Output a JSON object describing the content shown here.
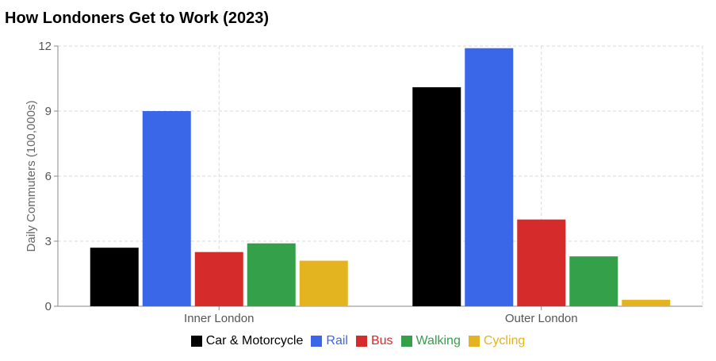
{
  "title": "How Londoners Get to Work (2023)",
  "chart_data": {
    "type": "bar",
    "title": "How Londoners Get to Work (2023)",
    "xlabel": "",
    "ylabel": "Daily Commuters (100,000s)",
    "ylim": [
      0,
      12
    ],
    "yticks": [
      "0",
      "3",
      "6",
      "9",
      "12"
    ],
    "grid": true,
    "legend_position": "bottom",
    "categories": [
      "Inner London",
      "Outer London"
    ],
    "series": [
      {
        "name": "Car & Motorcycle",
        "color": "#000000",
        "values": [
          2.7,
          10.1
        ]
      },
      {
        "name": "Rail",
        "color": "#3a66e8",
        "values": [
          9.0,
          11.9
        ]
      },
      {
        "name": "Bus",
        "color": "#d62b2b",
        "values": [
          2.5,
          4.0
        ]
      },
      {
        "name": "Walking",
        "color": "#34a04a",
        "values": [
          2.9,
          2.3
        ]
      },
      {
        "name": "Cycling",
        "color": "#e4b320",
        "values": [
          2.1,
          0.3
        ]
      }
    ]
  }
}
